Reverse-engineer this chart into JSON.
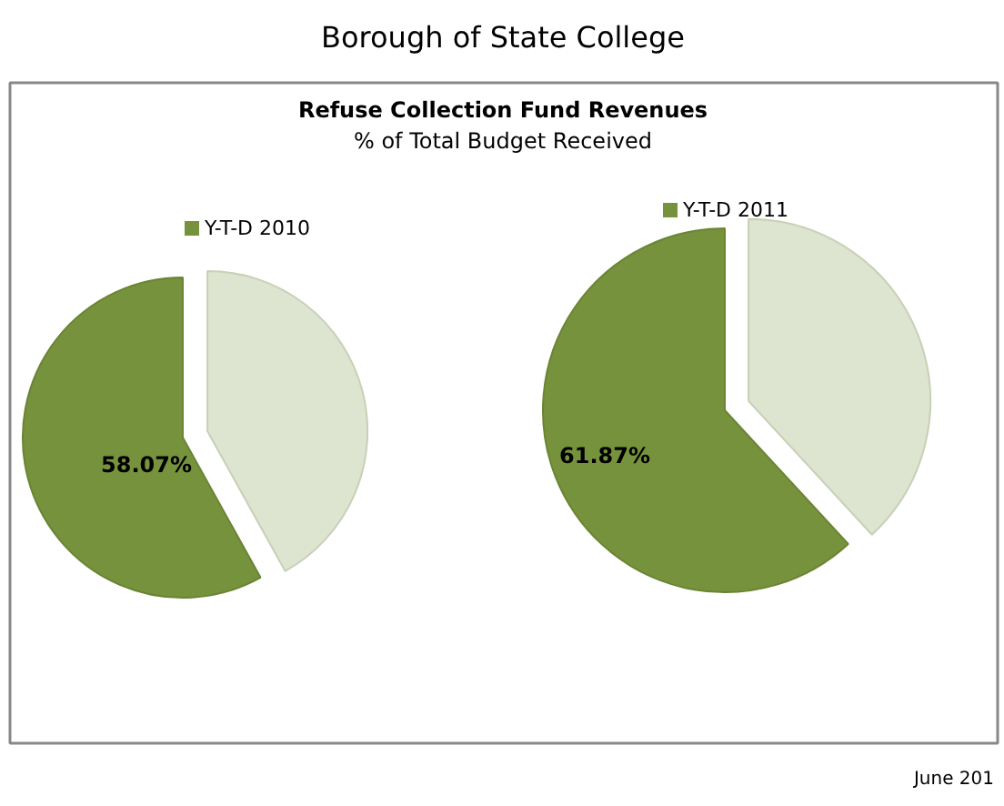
{
  "chart_data": [
    {
      "type": "pie",
      "title": "Refuse Collection Fund Revenues",
      "subtitle": "% of Total Budget Received",
      "annotations": [
        "Borough of State College"
      ],
      "categories": [
        "Y-T-D 2010",
        null
      ],
      "values": [
        58.07,
        41.93
      ],
      "colors": [
        "#76923c",
        "#dde4cf"
      ],
      "value_labels": [
        "58.07%",
        null
      ],
      "legend": "top"
    },
    {
      "type": "pie",
      "annotations": [
        "June 201"
      ],
      "categories": [
        "Y-T-D 2011",
        null
      ],
      "values": [
        61.87,
        38.13
      ],
      "colors": [
        "#76923c",
        "#dde4cf"
      ],
      "value_labels": [
        "61.87%",
        null
      ],
      "legend": "top"
    }
  ]
}
